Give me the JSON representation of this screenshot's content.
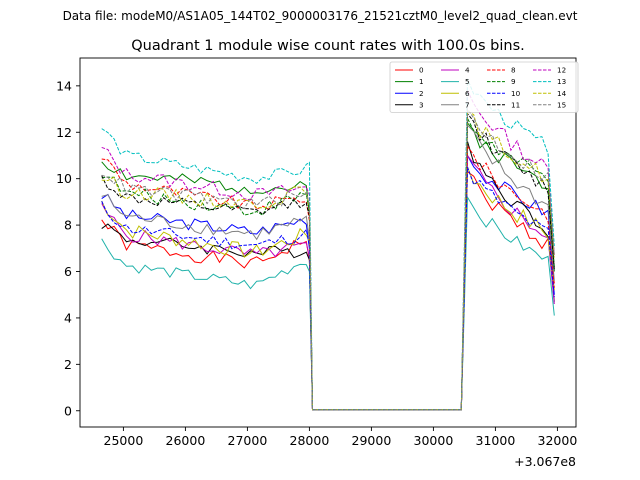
{
  "chart_data": {
    "type": "line",
    "suptitle": "Data file: modeM0/AS1A05_144T02_9000003176_21521cztM0_level2_quad_clean.evt",
    "title": "Quadrant 1 module wise count rates with 100.0s bins.",
    "xlabel": "",
    "ylabel": "",
    "x_offset_label": "+3.067e8",
    "xlim": [
      24300,
      32300
    ],
    "ylim": [
      -0.7,
      15.2
    ],
    "x_ticks": [
      25000,
      26000,
      27000,
      28000,
      29000,
      30000,
      31000,
      32000
    ],
    "y_ticks": [
      0,
      2,
      4,
      6,
      8,
      10,
      12,
      14
    ],
    "x_tick_labels": [
      "25000",
      "26000",
      "27000",
      "28000",
      "29000",
      "30000",
      "31000",
      "32000"
    ],
    "y_tick_labels": [
      "0",
      "2",
      "4",
      "6",
      "8",
      "10",
      "12",
      "14"
    ],
    "grid": false,
    "legend_position": "top-right",
    "legend_columns": 4,
    "segments": {
      "first": {
        "x_start": 24650,
        "x_end": 27950,
        "step": 100
      },
      "gap": {
        "x_start": 28050,
        "x_end": 30450,
        "value": 0.05
      },
      "second": {
        "x_start": 30550,
        "x_end": 31950,
        "step": 100
      }
    },
    "series": [
      {
        "name": "0",
        "color": "#ff0000",
        "dashed": false,
        "seed": 1,
        "noise": 0.3,
        "first": {
          "start": 8.2,
          "mid": 6.3,
          "end": 7.4
        },
        "edge": 6.5,
        "second": {
          "peak": 10.3,
          "end": 7.0
        },
        "last": 5.5
      },
      {
        "name": "1",
        "color": "#008000",
        "dashed": false,
        "seed": 2,
        "noise": 0.3,
        "first": {
          "start": 10.8,
          "mid": 9.6,
          "end": 9.6
        },
        "edge": 8.5,
        "second": {
          "peak": 12.4,
          "end": 9.6
        },
        "last": 6.0
      },
      {
        "name": "2",
        "color": "#0000ff",
        "dashed": false,
        "seed": 3,
        "noise": 0.28,
        "first": {
          "start": 9.3,
          "mid": 7.7,
          "end": 8.3
        },
        "edge": 7.0,
        "second": {
          "peak": 11.0,
          "end": 8.4
        },
        "last": 5.0
      },
      {
        "name": "3",
        "color": "#000000",
        "dashed": false,
        "seed": 4,
        "noise": 0.28,
        "first": {
          "start": 8.1,
          "mid": 6.8,
          "end": 6.9
        },
        "edge": 6.5,
        "second": {
          "peak": 11.6,
          "end": 7.6
        },
        "last": 4.7
      },
      {
        "name": "4",
        "color": "#bf00bf",
        "dashed": false,
        "seed": 5,
        "noise": 0.3,
        "first": {
          "start": 8.7,
          "mid": 6.7,
          "end": 7.1
        },
        "edge": 6.6,
        "second": {
          "peak": 11.0,
          "end": 7.3
        },
        "last": 4.6
      },
      {
        "name": "5",
        "color": "#20b2aa",
        "dashed": false,
        "seed": 6,
        "noise": 0.25,
        "first": {
          "start": 7.3,
          "mid": 5.4,
          "end": 6.5
        },
        "edge": 6.0,
        "second": {
          "peak": 9.2,
          "end": 6.3
        },
        "last": 4.1
      },
      {
        "name": "6",
        "color": "#bfbf00",
        "dashed": false,
        "seed": 7,
        "noise": 0.35,
        "first": {
          "start": 9.0,
          "mid": 6.8,
          "end": 7.6
        },
        "edge": 7.3,
        "second": {
          "peak": 10.5,
          "end": 7.5
        },
        "last": 5.2
      },
      {
        "name": "7",
        "color": "#808080",
        "dashed": false,
        "seed": 8,
        "noise": 0.3,
        "first": {
          "start": 9.3,
          "mid": 7.6,
          "end": 8.2
        },
        "edge": 7.4,
        "second": {
          "peak": 12.3,
          "end": 8.6
        },
        "last": 5.6
      },
      {
        "name": "8",
        "color": "#ff0000",
        "dashed": true,
        "seed": 9,
        "noise": 0.28,
        "first": {
          "start": 11.0,
          "mid": 8.8,
          "end": 9.2
        },
        "edge": 8.2,
        "second": {
          "peak": 11.4,
          "end": 8.3
        },
        "last": 5.3
      },
      {
        "name": "9",
        "color": "#008000",
        "dashed": true,
        "seed": 10,
        "noise": 0.3,
        "first": {
          "start": 10.3,
          "mid": 8.6,
          "end": 9.3
        },
        "edge": 8.6,
        "second": {
          "peak": 12.6,
          "end": 9.8
        },
        "last": 6.2
      },
      {
        "name": "10",
        "color": "#0000ff",
        "dashed": true,
        "seed": 11,
        "noise": 0.28,
        "first": {
          "start": 8.8,
          "mid": 7.1,
          "end": 7.6
        },
        "edge": 7.1,
        "second": {
          "peak": 10.5,
          "end": 7.5
        },
        "last": 4.9
      },
      {
        "name": "11",
        "color": "#000000",
        "dashed": true,
        "seed": 12,
        "noise": 0.28,
        "first": {
          "start": 10.0,
          "mid": 8.5,
          "end": 9.1
        },
        "edge": 8.4,
        "second": {
          "peak": 12.8,
          "end": 9.4
        },
        "last": 6.1
      },
      {
        "name": "12",
        "color": "#bf00bf",
        "dashed": true,
        "seed": 13,
        "noise": 0.3,
        "first": {
          "start": 11.3,
          "mid": 9.3,
          "end": 9.6
        },
        "edge": 9.3,
        "second": {
          "peak": 13.8,
          "end": 10.2
        },
        "last": 6.7
      },
      {
        "name": "13",
        "color": "#00bfbf",
        "dashed": true,
        "seed": 14,
        "noise": 0.25,
        "first": {
          "start": 12.2,
          "mid": 10.0,
          "end": 10.4
        },
        "edge": 10.7,
        "second": {
          "peak": 14.3,
          "end": 11.2
        },
        "last": 7.1
      },
      {
        "name": "14",
        "color": "#bfbf00",
        "dashed": true,
        "seed": 15,
        "noise": 0.32,
        "first": {
          "start": 10.1,
          "mid": 8.9,
          "end": 9.5
        },
        "edge": 8.8,
        "second": {
          "peak": 12.9,
          "end": 9.9
        },
        "last": 6.6
      },
      {
        "name": "15",
        "color": "#808080",
        "dashed": true,
        "seed": 16,
        "noise": 0.3,
        "first": {
          "start": 10.4,
          "mid": 8.9,
          "end": 9.3
        },
        "edge": 8.9,
        "second": {
          "peak": 13.0,
          "end": 9.9
        },
        "last": 6.7
      }
    ]
  }
}
